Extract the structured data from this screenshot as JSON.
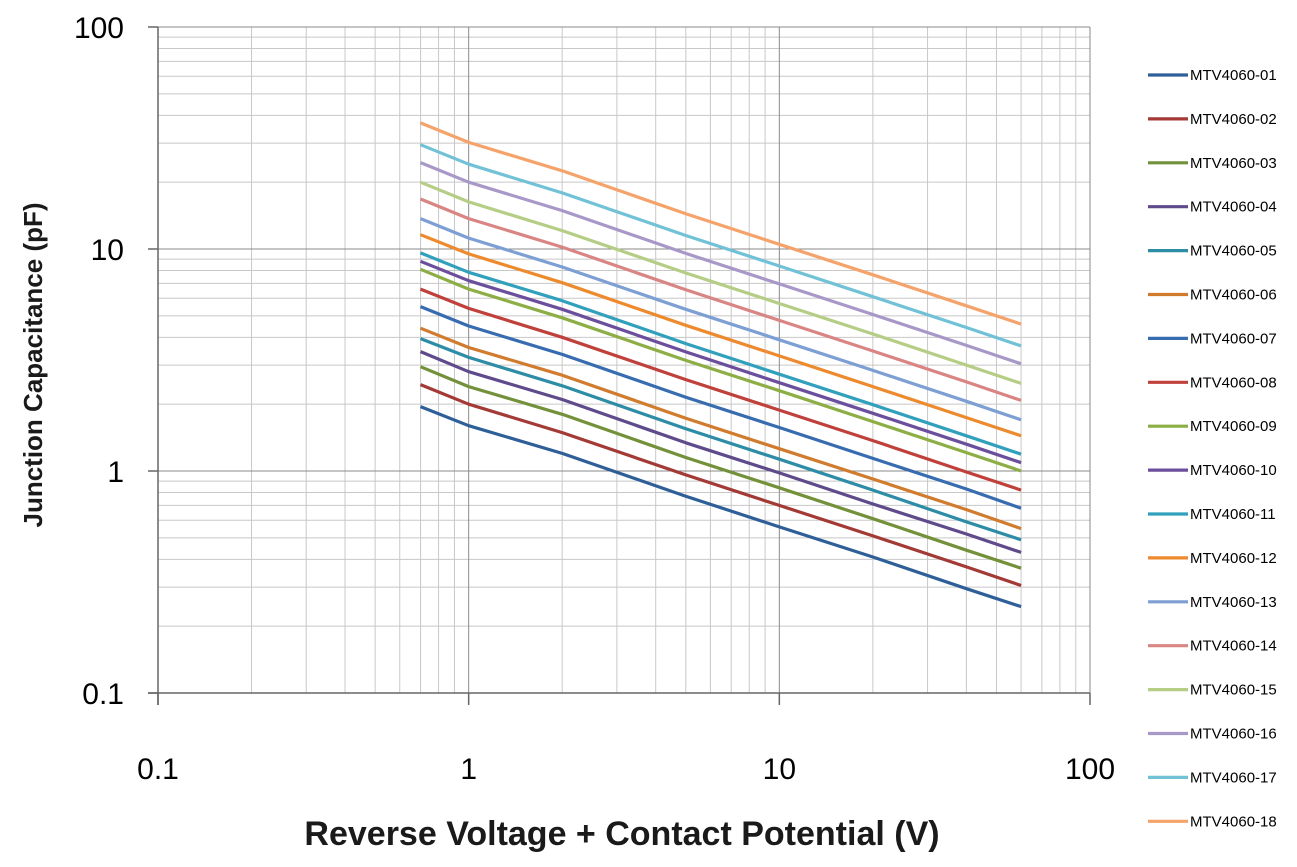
{
  "chart_data": {
    "type": "line",
    "xscale": "log",
    "yscale": "log",
    "xlim": [
      0.1,
      100
    ],
    "ylim": [
      0.1,
      100
    ],
    "xlabel": "Reverse Voltage + Contact Potential (V)",
    "ylabel": "Junction Capacitance (pF)",
    "x_ticks": [
      "0.1",
      "1",
      "10",
      "100"
    ],
    "y_ticks": [
      "0.1",
      "1",
      "10",
      "100"
    ],
    "grid": true,
    "legend_position": "right",
    "x": [
      0.7,
      1,
      2,
      5,
      10,
      20,
      40,
      60
    ],
    "series": [
      {
        "name": "MTV4060-01",
        "color": "#2f5f98",
        "values": [
          1.95,
          1.6,
          1.2,
          0.77,
          0.56,
          0.41,
          0.295,
          0.245
        ]
      },
      {
        "name": "MTV4060-02",
        "color": "#a33a36",
        "values": [
          2.45,
          2.0,
          1.49,
          0.96,
          0.7,
          0.51,
          0.37,
          0.305
        ]
      },
      {
        "name": "MTV4060-03",
        "color": "#73913a",
        "values": [
          2.95,
          2.4,
          1.8,
          1.15,
          0.84,
          0.61,
          0.44,
          0.365
        ]
      },
      {
        "name": "MTV4060-04",
        "color": "#5f4a8b",
        "values": [
          3.45,
          2.8,
          2.1,
          1.34,
          0.98,
          0.71,
          0.52,
          0.43
        ]
      },
      {
        "name": "MTV4060-05",
        "color": "#2d8ca6",
        "values": [
          3.95,
          3.25,
          2.42,
          1.55,
          1.13,
          0.82,
          0.59,
          0.49
        ]
      },
      {
        "name": "MTV4060-06",
        "color": "#d17b2e",
        "values": [
          4.4,
          3.6,
          2.7,
          1.73,
          1.26,
          0.92,
          0.67,
          0.55
        ]
      },
      {
        "name": "MTV4060-07",
        "color": "#386cb0",
        "values": [
          5.5,
          4.5,
          3.35,
          2.15,
          1.57,
          1.14,
          0.83,
          0.68
        ]
      },
      {
        "name": "MTV4060-08",
        "color": "#c0403b",
        "values": [
          6.6,
          5.4,
          4.0,
          2.58,
          1.88,
          1.37,
          0.99,
          0.82
        ]
      },
      {
        "name": "MTV4060-09",
        "color": "#8cae45",
        "values": [
          8.1,
          6.6,
          4.9,
          3.15,
          2.3,
          1.67,
          1.21,
          1.0
        ]
      },
      {
        "name": "MTV4060-10",
        "color": "#6b4f9c",
        "values": [
          8.8,
          7.2,
          5.35,
          3.44,
          2.5,
          1.82,
          1.32,
          1.09
        ]
      },
      {
        "name": "MTV4060-11",
        "color": "#31a0bd",
        "values": [
          9.6,
          7.85,
          5.85,
          3.75,
          2.73,
          1.99,
          1.44,
          1.19
        ]
      },
      {
        "name": "MTV4060-12",
        "color": "#ee8a2e",
        "values": [
          11.6,
          9.5,
          7.05,
          4.53,
          3.3,
          2.4,
          1.74,
          1.44
        ]
      },
      {
        "name": "MTV4060-13",
        "color": "#7d9fd3",
        "values": [
          13.7,
          11.2,
          8.3,
          5.35,
          3.9,
          2.84,
          2.06,
          1.7
        ]
      },
      {
        "name": "MTV4060-14",
        "color": "#d98583",
        "values": [
          16.8,
          13.7,
          10.2,
          6.55,
          4.77,
          3.47,
          2.52,
          2.08
        ]
      },
      {
        "name": "MTV4060-15",
        "color": "#b5cd85",
        "values": [
          20.0,
          16.3,
          12.1,
          7.8,
          5.68,
          4.14,
          3.0,
          2.48
        ]
      },
      {
        "name": "MTV4060-16",
        "color": "#a898c8",
        "values": [
          24.5,
          20.0,
          14.9,
          9.55,
          6.96,
          5.07,
          3.68,
          3.04
        ]
      },
      {
        "name": "MTV4060-17",
        "color": "#71c1d7",
        "values": [
          29.5,
          24.1,
          17.9,
          11.5,
          8.38,
          6.1,
          4.43,
          3.66
        ]
      },
      {
        "name": "MTV4060-18",
        "color": "#f5a36a",
        "values": [
          37.0,
          30.2,
          22.5,
          14.4,
          10.5,
          7.65,
          5.55,
          4.59
        ]
      }
    ]
  }
}
